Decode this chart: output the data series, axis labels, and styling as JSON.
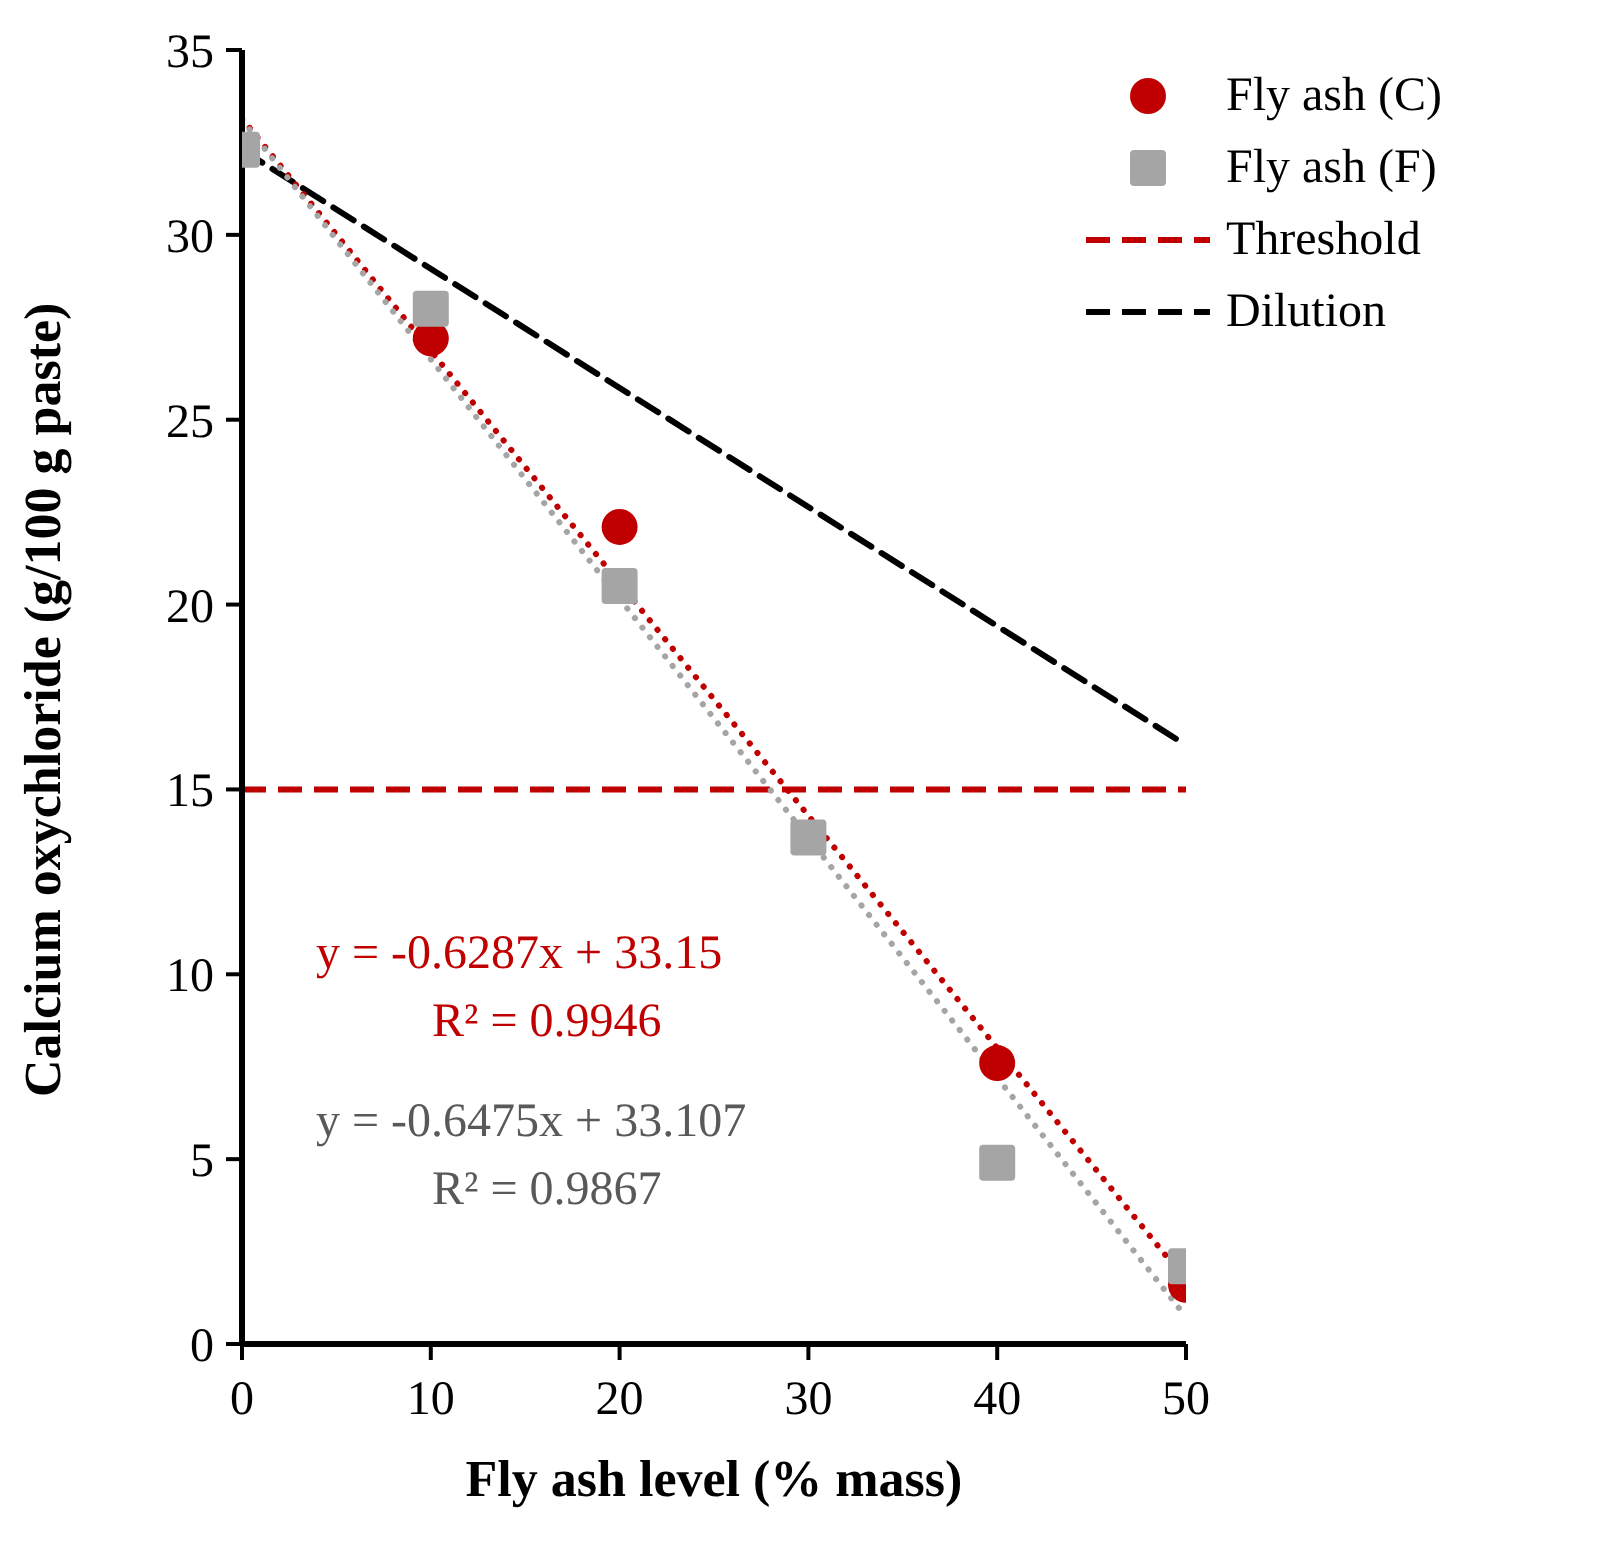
{
  "chart_data": {
    "type": "scatter",
    "xlabel": "Fly ash level (% mass)",
    "ylabel": "Calcium oxychloride (g/100 g paste)",
    "xlim": [
      0,
      50
    ],
    "xticks": [
      0,
      10,
      20,
      30,
      40,
      50
    ],
    "ylim": [
      0,
      35
    ],
    "yticks": [
      0,
      5,
      10,
      15,
      20,
      25,
      30,
      35
    ],
    "legend": "top right",
    "series": [
      {
        "name": "Fly ash (C)",
        "marker": "circle",
        "color": "#c00000",
        "x": [
          10,
          20,
          40,
          50
        ],
        "values": [
          27.2,
          22.1,
          7.6,
          1.6
        ]
      },
      {
        "name": "Fly ash (F)",
        "marker": "square",
        "color": "#a5a5a5",
        "x": [
          0,
          10,
          20,
          30,
          40,
          50
        ],
        "values": [
          32.3,
          28.0,
          20.5,
          13.7,
          4.9,
          2.1
        ]
      },
      {
        "name": "Dilution",
        "type": "line",
        "line_style": "dashed",
        "color": "#000000",
        "x": [
          0,
          50
        ],
        "values": [
          32.3,
          16.2
        ]
      },
      {
        "type": "line",
        "line_style": "dotted",
        "color": "#c00000",
        "x": [
          0,
          50
        ],
        "values": [
          33.15,
          1.72
        ]
      },
      {
        "type": "line",
        "line_style": "dotted",
        "color": "#a5a5a5",
        "x": [
          0,
          50
        ],
        "values": [
          33.11,
          0.73
        ]
      }
    ],
    "ref_lines": [
      {
        "axis": "y",
        "value": 15,
        "label": "Threshold",
        "color": "#c00000",
        "line_style": "dashed"
      }
    ],
    "annotations": [
      "y = -0.6287x + 33.15",
      "R² = 0.9946",
      "y = -0.6475x + 33.107",
      "R² = 0.9867"
    ]
  }
}
